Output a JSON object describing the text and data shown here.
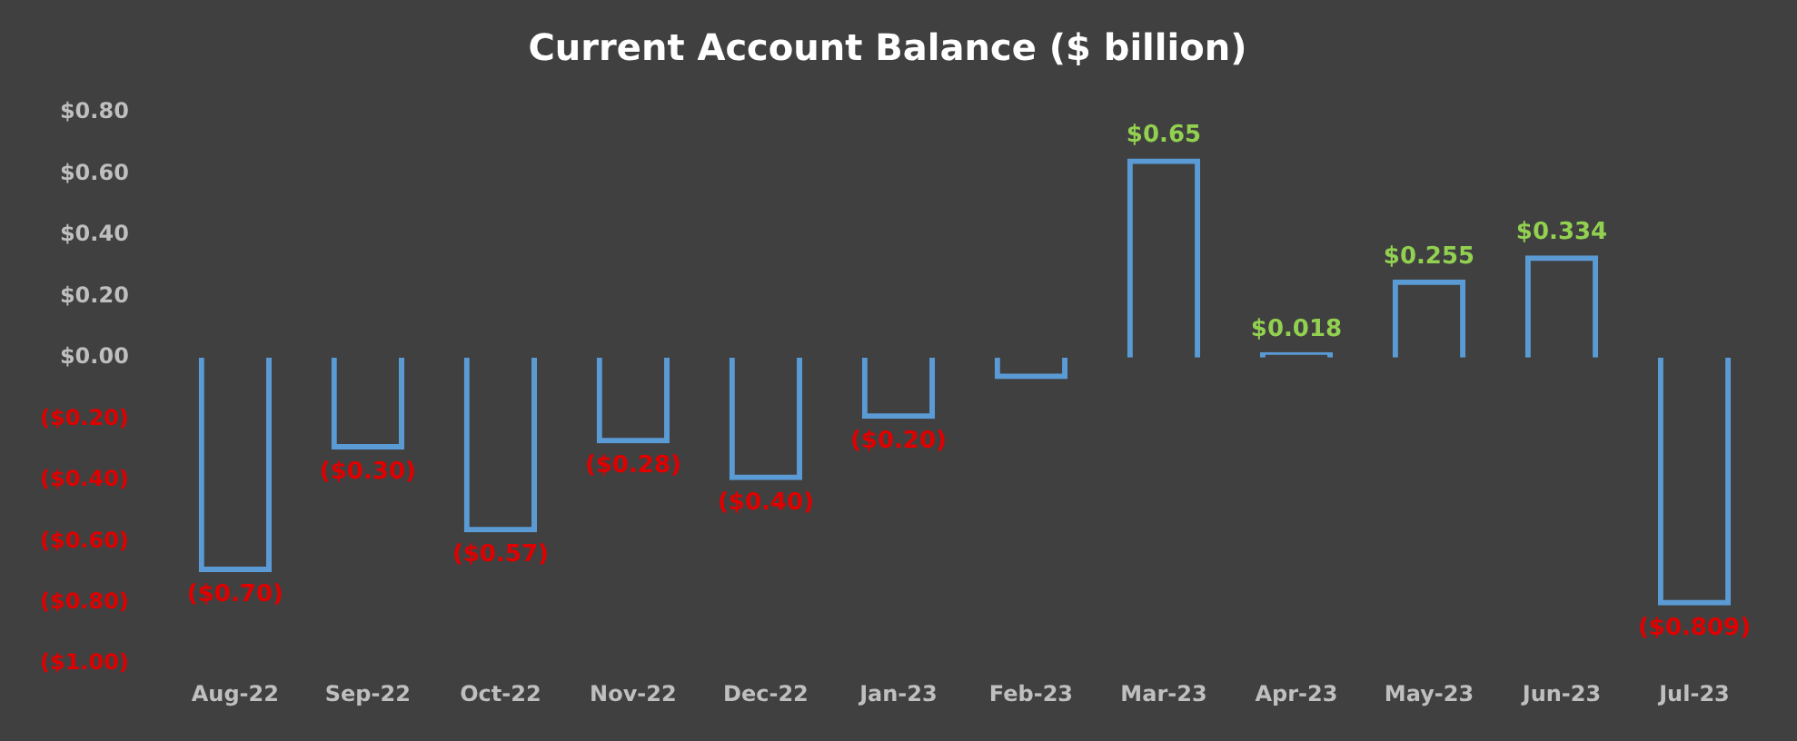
{
  "chart_data": {
    "type": "bar",
    "title": "Current Account Balance ($ billion)",
    "categories": [
      "Aug-22",
      "Sep-22",
      "Oct-22",
      "Nov-22",
      "Dec-22",
      "Jan-23",
      "Feb-23",
      "Mar-23",
      "Apr-23",
      "May-23",
      "Jun-23",
      "Jul-23"
    ],
    "values": [
      -0.7,
      -0.3,
      -0.57,
      -0.28,
      -0.4,
      -0.2,
      -0.07,
      0.65,
      0.018,
      0.255,
      0.334,
      -0.809
    ],
    "value_labels": [
      "($0.70)",
      "($0.30)",
      "($0.57)",
      "($0.28)",
      "($0.40)",
      "($0.20)",
      null,
      "$0.65",
      "$0.018",
      "$0.255",
      "$0.334",
      "($0.809)"
    ],
    "color": "#5b9bd5",
    "ylim": [
      -1,
      0.8
    ],
    "yticks": [
      {
        "value": 0.8,
        "label": "$0.80"
      },
      {
        "value": 0.6,
        "label": "$0.60"
      },
      {
        "value": 0.4,
        "label": "$0.40"
      },
      {
        "value": 0.2,
        "label": "$0.20"
      },
      {
        "value": 0,
        "label": "$0.00"
      },
      {
        "value": -0.2,
        "label": "($0.20)"
      },
      {
        "value": -0.4,
        "label": "($0.40)"
      },
      {
        "value": -0.6,
        "label": "($0.60)"
      },
      {
        "value": -0.8,
        "label": "($0.80)"
      },
      {
        "value": -1,
        "label": "($1.00)"
      }
    ],
    "grid": false,
    "legend": false
  }
}
